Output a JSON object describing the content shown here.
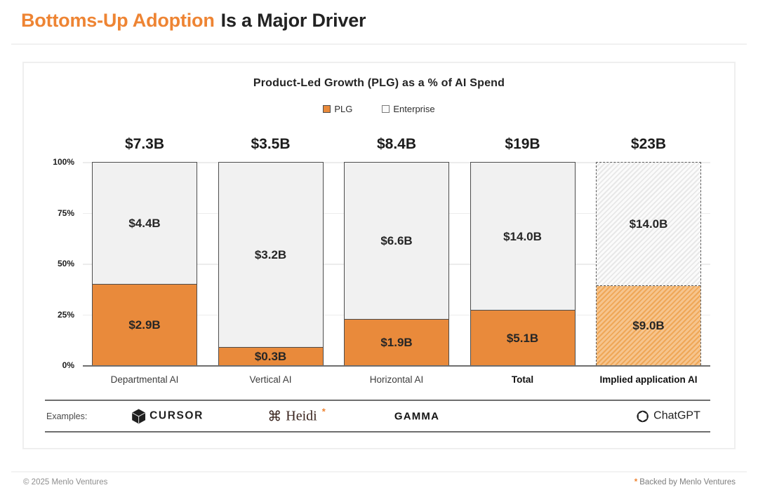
{
  "header": {
    "title_highlight": "Bottoms-Up Adoption",
    "title_rest": "Is a Major Driver"
  },
  "chart_data": {
    "type": "bar",
    "stacked": true,
    "normalized_to_percent": true,
    "units": "USD billions",
    "title": "Product-Led Growth (PLG) as a % of AI Spend",
    "legend": {
      "position": "top-center",
      "entries": [
        {
          "label": "PLG",
          "color": "#E98A3B"
        },
        {
          "label": "Enterprise",
          "color": "#F1F1F1"
        }
      ]
    },
    "y_axis": {
      "range": [
        0,
        100
      ],
      "grid": true,
      "ticks": [
        "100%",
        "75%",
        "50%",
        "25%",
        "0%"
      ]
    },
    "categories": [
      "Departmental AI",
      "Vertical AI",
      "Horizontal AI",
      "Total",
      "Implied application AI"
    ],
    "series": [
      {
        "name": "PLG",
        "values": [
          2.9,
          0.3,
          1.9,
          5.1,
          9.0
        ]
      },
      {
        "name": "Enterprise",
        "values": [
          4.4,
          3.2,
          6.6,
          14.0,
          14.0
        ]
      }
    ],
    "bars": [
      {
        "category": "Departmental AI",
        "total_value": 7.3,
        "total_label": "$7.3B",
        "enterprise_value": 4.4,
        "enterprise_label": "$4.4B",
        "plg_value": 2.9,
        "plg_label": "$2.9B",
        "hatched": false
      },
      {
        "category": "Vertical AI",
        "total_value": 3.5,
        "total_label": "$3.5B",
        "enterprise_value": 3.2,
        "enterprise_label": "$3.2B",
        "plg_value": 0.3,
        "plg_label": "$0.3B",
        "hatched": false
      },
      {
        "category": "Horizontal AI",
        "total_value": 8.4,
        "total_label": "$8.4B",
        "enterprise_value": 6.6,
        "enterprise_label": "$6.6B",
        "plg_value": 1.9,
        "plg_label": "$1.9B",
        "hatched": false
      },
      {
        "category": "Total",
        "total_value": 19,
        "total_label": "$19B",
        "enterprise_value": 14.0,
        "enterprise_label": "$14.0B",
        "plg_value": 5.1,
        "plg_label": "$5.1B",
        "hatched": false
      },
      {
        "category": "Implied application AI",
        "total_value": 23,
        "total_label": "$23B",
        "enterprise_value": 14.0,
        "enterprise_label": "$14.0B",
        "plg_value": 9.0,
        "plg_label": "$9.0B",
        "hatched": true
      }
    ]
  },
  "examples": {
    "label": "Examples:",
    "items": [
      {
        "name": "Cursor",
        "text": "CURSOR"
      },
      {
        "name": "Heidi",
        "text": "Heidi",
        "note_asterisk": "*"
      },
      {
        "name": "Gamma",
        "text": "GAMMA"
      },
      {
        "name": "ChatGPT",
        "text": "ChatGPT"
      }
    ]
  },
  "footer": {
    "left": "© 2025 Menlo Ventures",
    "note_asterisk": "*",
    "note_text": "Backed by Menlo Ventures"
  },
  "colors": {
    "accent_orange": "#EE8433",
    "plg_fill": "#E98A3B",
    "enterprise_fill": "#F1F1F1",
    "bar_border": "#4D4D4D"
  }
}
